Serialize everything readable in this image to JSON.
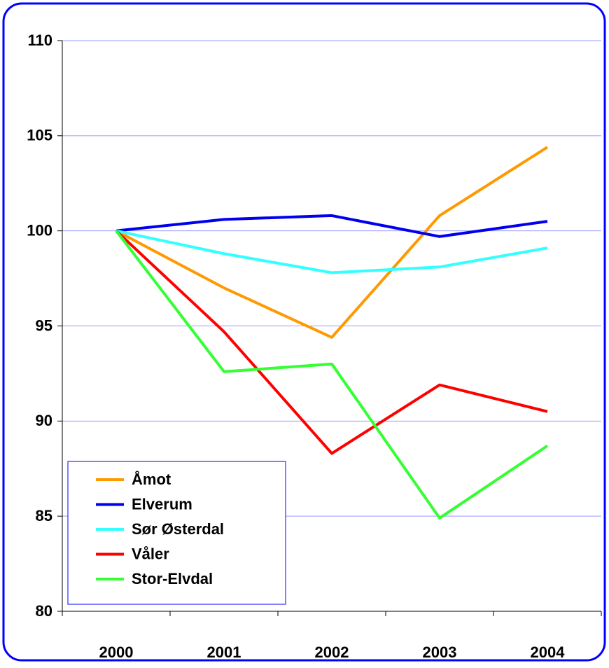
{
  "chart_data": {
    "type": "line",
    "categories": [
      "2000",
      "2001",
      "2002",
      "2003",
      "2004"
    ],
    "series": [
      {
        "name": "Åmot",
        "color": "#ff9900",
        "values": [
          100,
          97.0,
          94.4,
          100.8,
          104.4
        ]
      },
      {
        "name": "Elverum",
        "color": "#0000ee",
        "values": [
          100,
          100.6,
          100.8,
          99.7,
          100.5
        ]
      },
      {
        "name": "Sør Østerdal",
        "color": "#33ffff",
        "values": [
          100,
          98.8,
          97.8,
          98.1,
          99.1
        ]
      },
      {
        "name": "Våler",
        "color": "#ff0000",
        "values": [
          100,
          94.7,
          88.3,
          91.9,
          90.5
        ]
      },
      {
        "name": "Stor-Elvdal",
        "color": "#33ff33",
        "values": [
          100,
          92.6,
          93.0,
          84.9,
          88.7
        ]
      }
    ],
    "ylim": [
      80,
      110
    ],
    "yticks": [
      80,
      85,
      90,
      95,
      100,
      105,
      110
    ],
    "grid": true,
    "legend": "lower left"
  }
}
